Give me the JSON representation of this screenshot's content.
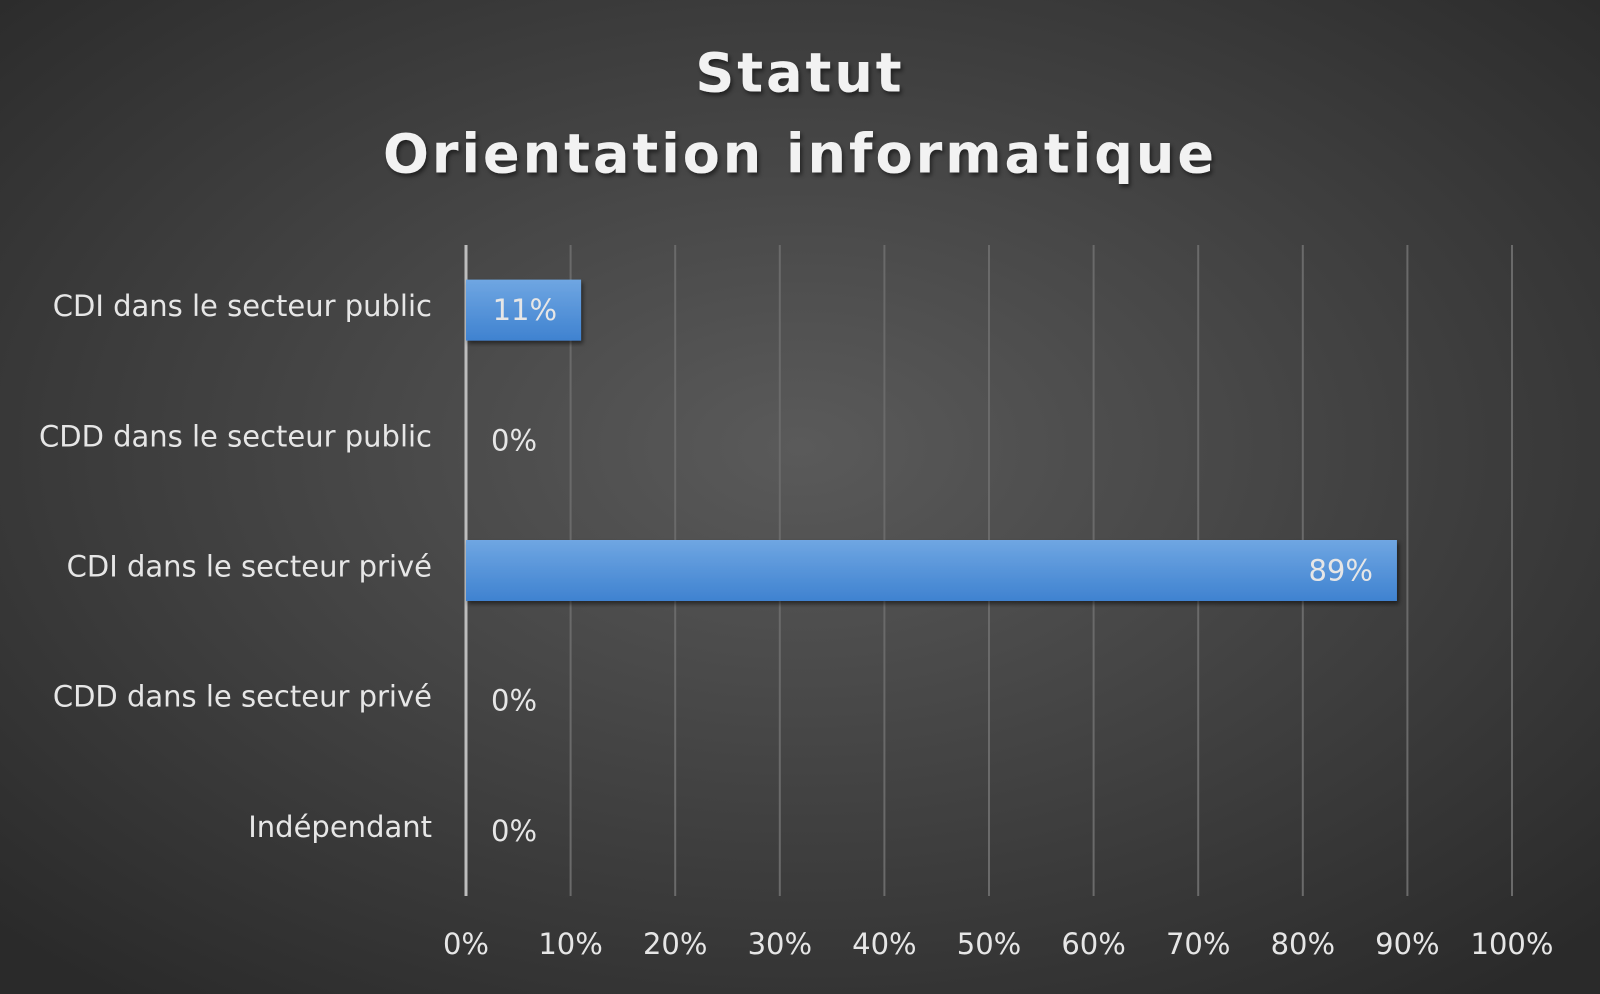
{
  "chart_data": {
    "type": "hbar",
    "title": "Statut",
    "subtitle": "Orientation informatique",
    "categories": [
      "CDI dans le secteur public",
      "CDD dans le secteur public",
      "CDI dans le secteur privé",
      "CDD dans le secteur privé",
      "Indépendant"
    ],
    "values": [
      11,
      0,
      89,
      0,
      0
    ],
    "value_labels": [
      "11%",
      "0%",
      "89%",
      "0%",
      "0%"
    ],
    "color": "#4f90d8",
    "xlim": [
      0,
      100
    ],
    "xticks": [
      {
        "value": 0,
        "label": "0%"
      },
      {
        "value": 10,
        "label": "10%"
      },
      {
        "value": 20,
        "label": "20%"
      },
      {
        "value": 30,
        "label": "30%"
      },
      {
        "value": 40,
        "label": "40%"
      },
      {
        "value": 50,
        "label": "50%"
      },
      {
        "value": 60,
        "label": "60%"
      },
      {
        "value": 70,
        "label": "70%"
      },
      {
        "value": 80,
        "label": "80%"
      },
      {
        "value": 90,
        "label": "90%"
      },
      {
        "value": 100,
        "label": "100%"
      }
    ],
    "grid": true
  }
}
